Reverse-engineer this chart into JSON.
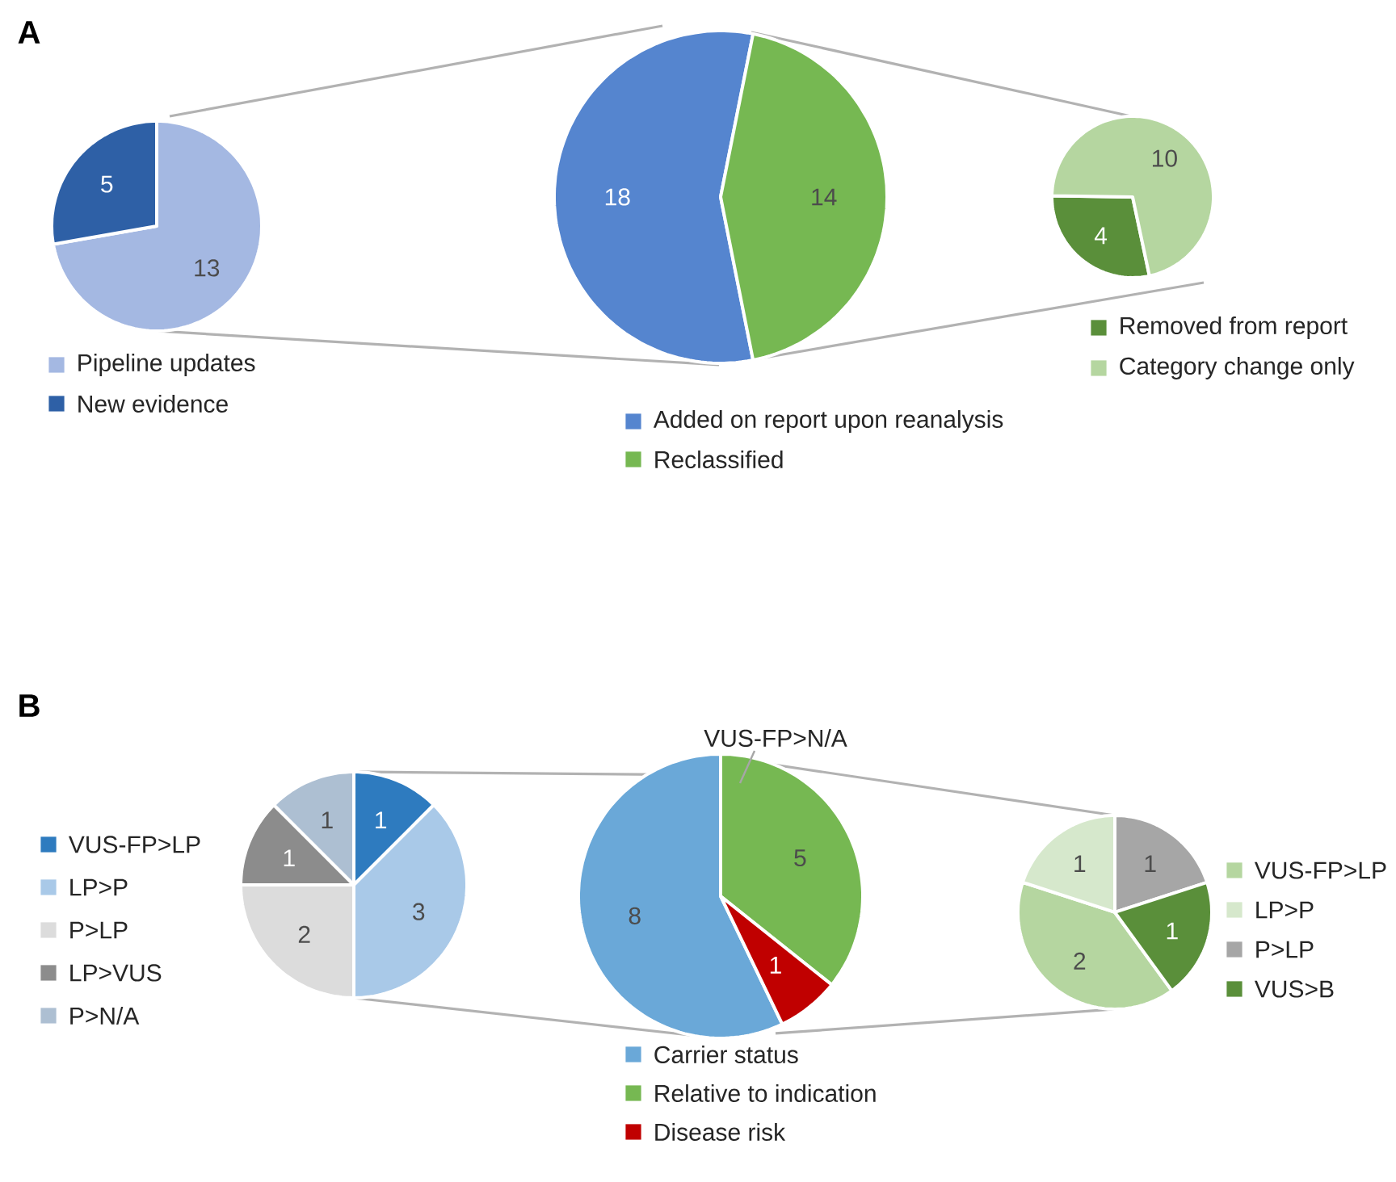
{
  "chart_data": [
    {
      "type": "pie",
      "categories": [
        "Pipeline updates",
        "New evidence"
      ],
      "values": [
        13,
        5
      ],
      "colors": [
        "#a4b8e2",
        "#2e60a6"
      ],
      "data_labels": true,
      "legend": "bottom",
      "annotations": [
        "A"
      ]
    },
    {
      "type": "pie",
      "categories": [
        "Added on report upon reanalysis",
        "Reclassified"
      ],
      "values": [
        18,
        14
      ],
      "colors": [
        "#5585cf",
        "#76b852"
      ],
      "data_labels": true,
      "legend": "bottom"
    },
    {
      "type": "pie",
      "categories": [
        "Removed from report",
        "Category change only"
      ],
      "values": [
        4,
        10
      ],
      "colors": [
        "#5a8f3a",
        "#b5d6a0"
      ],
      "data_labels": true,
      "legend": "bottom"
    },
    {
      "type": "pie",
      "categories": [
        "VUS-FP>LP",
        "LP>P",
        "P>LP",
        "LP>VUS",
        "P>N/A"
      ],
      "values": [
        1,
        3,
        2,
        1,
        1
      ],
      "colors": [
        "#2e7bbf",
        "#a9c9e8",
        "#dcdcdc",
        "#8c8c8c",
        "#adbfd2"
      ],
      "data_labels": true,
      "legend": "left",
      "annotations": [
        "B"
      ]
    },
    {
      "type": "pie",
      "categories": [
        "Carrier status",
        "Relative to indication",
        "Disease risk"
      ],
      "values": [
        8,
        5,
        1
      ],
      "colors": [
        "#6aa8d8",
        "#76b852",
        "#c00000"
      ],
      "data_labels": true,
      "legend": "bottom",
      "annotations": [
        "VUS-FP>N/A"
      ]
    },
    {
      "type": "pie",
      "categories": [
        "VUS-FP>LP",
        "LP>P",
        "P>LP",
        "VUS>B"
      ],
      "values": [
        2,
        1,
        1,
        1
      ],
      "colors": [
        "#b5d6a0",
        "#d6e8cc",
        "#a6a6a6",
        "#5a8f3a"
      ],
      "data_labels": true,
      "legend": "right"
    }
  ]
}
